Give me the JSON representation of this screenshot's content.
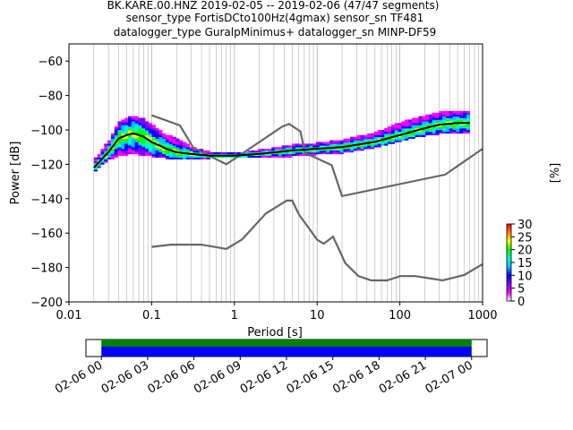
{
  "title_lines": [
    "BK.KARE.00.HNZ   2019-02-05 -- 2019-02-06  (47/47 segments)",
    "sensor_type FortisDCto100Hz(4gmax) sensor_sn TF481",
    "datalogger_type GuralpMinimus+ datalogger_sn MINP-DF59"
  ],
  "chart_data": {
    "type": "heatmap",
    "xlabel": "Period [s]",
    "ylabel": "Power [dB]",
    "xscale": "log",
    "xlim": [
      0.01,
      1000
    ],
    "ylim": [
      -200,
      -50
    ],
    "grid": "x-major-and-minor",
    "x_tick_labels": [
      "0.01",
      "0.1",
      "1",
      "10",
      "100",
      "1000"
    ],
    "x_ticks": [
      0.01,
      0.1,
      1,
      10,
      100,
      1000
    ],
    "y_tick_labels": [
      "−200",
      "−180",
      "−160",
      "−140",
      "−120",
      "−100",
      "−80",
      "−60"
    ],
    "y_ticks": [
      -200,
      -180,
      -160,
      -140,
      -120,
      -100,
      -80,
      -60
    ],
    "colorbar": {
      "label": "[%]",
      "ticks": [
        0,
        5,
        10,
        15,
        20,
        25,
        30
      ],
      "tick_labels": [
        "0",
        "5",
        "10",
        "15",
        "20",
        "25",
        "30"
      ],
      "range": [
        0,
        30
      ],
      "colors": [
        "#ffffff",
        "#ff00ff",
        "#7f00ff",
        "#0000ff",
        "#00bfff",
        "#00ffbf",
        "#00ff00",
        "#ffff00",
        "#ff8000",
        "#ff0000"
      ]
    },
    "mean_curve": {
      "color": "#000000",
      "x": [
        0.02,
        0.025,
        0.03,
        0.04,
        0.05,
        0.06,
        0.07,
        0.08,
        0.1,
        0.15,
        0.2,
        0.3,
        0.5,
        1,
        2,
        5,
        10,
        20,
        50,
        100,
        200,
        300,
        500,
        700
      ],
      "y": [
        -122,
        -117,
        -113,
        -105,
        -103,
        -102,
        -103,
        -104,
        -107,
        -111,
        -113,
        -114,
        -115,
        -115,
        -114,
        -112,
        -111,
        -110,
        -107,
        -103,
        -99,
        -97,
        -96,
        -96
      ]
    },
    "noise_model_high": {
      "color": "#666666",
      "x": [
        0.1,
        0.22,
        0.32,
        0.8,
        3.8,
        4.6,
        6.3,
        7.1,
        10,
        15,
        20,
        354,
        1000
      ],
      "y": [
        -91.5,
        -97.4,
        -110.5,
        -120,
        -98,
        -96.5,
        -101,
        -113.5,
        -116.6,
        -120.5,
        -138.5,
        -126,
        -111
      ]
    },
    "noise_model_low": {
      "color": "#666666",
      "x": [
        0.1,
        0.17,
        0.4,
        0.8,
        1.24,
        2.4,
        4.3,
        5,
        6,
        10,
        12,
        15.6,
        21.9,
        31.6,
        45,
        70,
        101,
        154,
        328,
        600,
        1000
      ],
      "y": [
        -168,
        -166.7,
        -166.7,
        -169.2,
        -163.7,
        -148.6,
        -141.1,
        -141.1,
        -149,
        -163.8,
        -166.2,
        -162.1,
        -177.5,
        -185,
        -187.5,
        -187.5,
        -185,
        -185,
        -187.5,
        -184.4,
        -178
      ]
    },
    "ppsd_band": {
      "x": [
        0.02,
        0.025,
        0.03,
        0.04,
        0.05,
        0.06,
        0.07,
        0.08,
        0.1,
        0.15,
        0.2,
        0.25,
        0.3,
        0.5,
        1,
        2,
        5,
        10,
        20,
        50,
        100,
        200,
        300,
        500,
        700
      ],
      "min": [
        -124,
        -120,
        -117,
        -115,
        -114,
        -114,
        -114,
        -115,
        -115,
        -116,
        -117,
        -117,
        -117,
        -116,
        -116,
        -116,
        -115,
        -114,
        -113,
        -110,
        -106,
        -103,
        -102,
        -102,
        -102
      ],
      "max": [
        -118,
        -112,
        -107,
        -96,
        -93,
        -92,
        -93,
        -94,
        -97,
        -103,
        -105,
        -108,
        -110,
        -113,
        -114,
        -112,
        -109,
        -108,
        -106,
        -102,
        -96,
        -92,
        -90,
        -89,
        -89
      ]
    },
    "time_axis": {
      "tick_labels": [
        "02-06 00",
        "02-06 03",
        "02-06 06",
        "02-06 09",
        "02-06 12",
        "02-06 15",
        "02-06 18",
        "02-06 21",
        "02-07 00"
      ],
      "range_hours": [
        -1,
        25
      ],
      "coverage_hours": [
        0,
        24
      ],
      "colors": {
        "data": "#008000",
        "segments": "#0000ff"
      }
    }
  }
}
